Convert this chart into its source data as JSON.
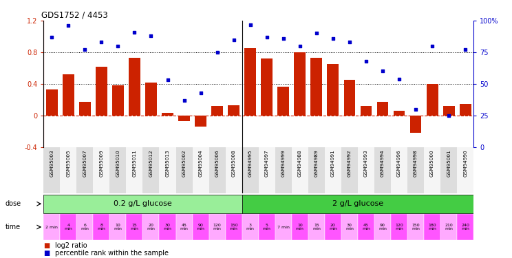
{
  "title": "GDS1752 / 4453",
  "samples": [
    "GSM95003",
    "GSM95005",
    "GSM95007",
    "GSM95009",
    "GSM95010",
    "GSM95011",
    "GSM95012",
    "GSM95013",
    "GSM95002",
    "GSM95004",
    "GSM95006",
    "GSM95008",
    "GSM94995",
    "GSM94997",
    "GSM94999",
    "GSM94988",
    "GSM94989",
    "GSM94991",
    "GSM94992",
    "GSM94993",
    "GSM94994",
    "GSM94996",
    "GSM94998",
    "GSM95000",
    "GSM95001",
    "GSM94990"
  ],
  "log2_ratio": [
    0.33,
    0.52,
    0.17,
    0.62,
    0.38,
    0.73,
    0.42,
    0.03,
    -0.07,
    -0.14,
    0.12,
    0.13,
    0.85,
    0.72,
    0.36,
    0.8,
    0.73,
    0.65,
    0.45,
    0.12,
    0.17,
    0.06,
    -0.22,
    0.4,
    0.12,
    0.15
  ],
  "percentile": [
    87,
    96,
    77,
    83,
    80,
    91,
    88,
    53,
    37,
    43,
    75,
    85,
    97,
    87,
    86,
    80,
    90,
    86,
    83,
    68,
    60,
    54,
    30,
    80,
    25,
    77
  ],
  "dose_labels": [
    "0.2 g/L glucose",
    "2 g/L glucose"
  ],
  "dose_group1_count": 12,
  "dose_group2_count": 14,
  "bar_color": "#cc2200",
  "dot_color": "#0000cc",
  "dose_color1": "#99ee99",
  "dose_color2": "#44cc44",
  "time_color_light": "#ffaaff",
  "time_color_dark": "#ff55ff",
  "bg_color": "#ffffff",
  "ylim_left": [
    -0.4,
    1.2
  ],
  "ylim_right": [
    0,
    100
  ],
  "yticks_left": [
    -0.4,
    0.0,
    0.4,
    0.8,
    1.2
  ],
  "yticks_right": [
    0,
    25,
    50,
    75,
    100
  ],
  "hlines_dotted": [
    0.4,
    0.8
  ],
  "legend_log2": "log2 ratio",
  "legend_pct": "percentile rank within the sample",
  "time_labels": [
    "2 min",
    "4\nmin",
    "6\nmin",
    "8\nmin",
    "10\nmin",
    "15\nmin",
    "20\nmin",
    "30\nmin",
    "45\nmin",
    "90\nmin",
    "120\nmin",
    "150\nmin",
    "3\nmin",
    "5\nmin",
    "7 min",
    "10\nmin",
    "15\nmin",
    "20\nmin",
    "30\nmin",
    "45\nmin",
    "90\nmin",
    "120\nmin",
    "150\nmin",
    "180\nmin",
    "210\nmin",
    "240\nmin"
  ]
}
